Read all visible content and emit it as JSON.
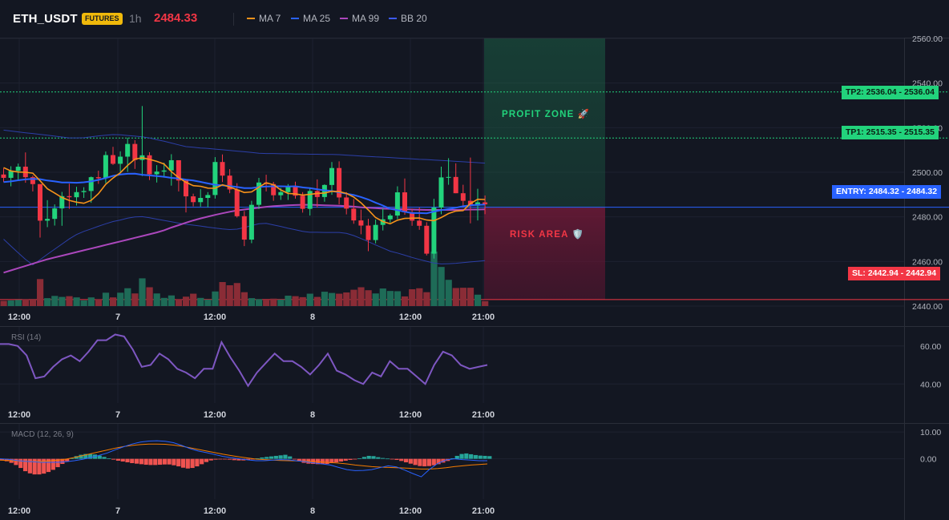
{
  "header": {
    "symbol": "ETH_USDT",
    "badge": "FUTURES",
    "timeframe": "1h",
    "price": "2484.33",
    "legend": [
      {
        "label": "MA 7",
        "color": "#f7931a"
      },
      {
        "label": "MA 25",
        "color": "#2962ff"
      },
      {
        "label": "MA 99",
        "color": "#ab47bc"
      },
      {
        "label": "BB 20",
        "color": "#3d5afe"
      }
    ]
  },
  "colors": {
    "background": "#131722",
    "up": "#22d37c",
    "down": "#f23645",
    "grid": "#1e2230",
    "ma7": "#f7931a",
    "ma25": "#2962ff",
    "ma99": "#ab47bc",
    "bb": "#2c3fa8",
    "rsi": "#7e57c2",
    "macd_line": "#2962ff",
    "signal_line": "#f57c00",
    "tp": "#22d37c",
    "entry": "#2962ff",
    "sl": "#f23645"
  },
  "zones": {
    "profit_label": "PROFIT ZONE 🚀",
    "risk_label": "RISK AREA 🛡️"
  },
  "levels": {
    "tp2": {
      "tag": "TP2: 2536.04",
      "price_label": "2536.04",
      "value": 2536.04
    },
    "tp1": {
      "tag": "TP1: 2515.35",
      "price_label": "2515.35",
      "value": 2515.35
    },
    "entry": {
      "tag": "ENTRY: 2484.32",
      "price_label": "2484.32",
      "value": 2484.32
    },
    "sl": {
      "tag": "SL: 2442.94",
      "price_label": "2442.94",
      "value": 2442.94
    }
  },
  "time_axis": [
    "12:00",
    "7",
    "12:00",
    "8",
    "12:00",
    "21:00"
  ],
  "chart_data": [
    {
      "type": "candlestick",
      "title": "ETH_USDT 1h",
      "ylim": [
        2440,
        2560
      ],
      "yticks": [
        "2560.00",
        "2540.00",
        "2520.00",
        "2500.00",
        "2480.00",
        "2460.00",
        "2440.00"
      ],
      "xticks": [
        "12:00",
        "7",
        "12:00",
        "8",
        "12:00",
        "21:00"
      ],
      "ohlc": [
        [
          2499.0,
          2501.9,
          2495.6,
          2497.5
        ],
        [
          2497.5,
          2502.7,
          2493.7,
          2500.6
        ],
        [
          2500.6,
          2503.9,
          2496.4,
          2502.5
        ],
        [
          2502.5,
          2508.9,
          2495.3,
          2497.8
        ],
        [
          2497.8,
          2498.5,
          2491.4,
          2494.7
        ],
        [
          2494.7,
          2494.7,
          2470.7,
          2478.3
        ],
        [
          2478.3,
          2487.5,
          2475.4,
          2479.1
        ],
        [
          2479.1,
          2485.6,
          2476.1,
          2483.8
        ],
        [
          2483.8,
          2491.2,
          2476.0,
          2489.3
        ],
        [
          2489.3,
          2494.9,
          2483.6,
          2488.8
        ],
        [
          2488.8,
          2493.5,
          2485.1,
          2491.1
        ],
        [
          2491.1,
          2493.3,
          2488.5,
          2491.6
        ],
        [
          2491.6,
          2498.1,
          2486.3,
          2497.8
        ],
        [
          2497.8,
          2500.7,
          2494.8,
          2497.3
        ],
        [
          2497.3,
          2509.3,
          2495.1,
          2507.7
        ],
        [
          2507.7,
          2511.4,
          2503.3,
          2503.8
        ],
        [
          2503.8,
          2509.4,
          2500.2,
          2507.0
        ],
        [
          2507.0,
          2515.5,
          2500.2,
          2512.7
        ],
        [
          2512.7,
          2514.4,
          2501.5,
          2505.5
        ],
        [
          2505.5,
          2529.7,
          2498.3,
          2507.6
        ],
        [
          2507.6,
          2509.0,
          2496.5,
          2499.1
        ],
        [
          2499.1,
          2503.2,
          2495.4,
          2500.3
        ],
        [
          2500.3,
          2504.3,
          2497.6,
          2500.8
        ],
        [
          2500.8,
          2508.1,
          2494.0,
          2505.4
        ],
        [
          2505.4,
          2505.4,
          2491.4,
          2496.3
        ],
        [
          2496.3,
          2496.8,
          2482.0,
          2489.2
        ],
        [
          2489.2,
          2490.4,
          2484.7,
          2486.6
        ],
        [
          2486.6,
          2492.4,
          2484.6,
          2488.5
        ],
        [
          2488.5,
          2491.1,
          2484.3,
          2489.8
        ],
        [
          2489.8,
          2506.8,
          2488.2,
          2504.6
        ],
        [
          2504.6,
          2508.0,
          2495.6,
          2498.5
        ],
        [
          2498.5,
          2501.4,
          2490.6,
          2492.3
        ],
        [
          2492.3,
          2495.1,
          2479.7,
          2480.3
        ],
        [
          2480.3,
          2482.6,
          2466.9,
          2469.8
        ],
        [
          2469.8,
          2487.2,
          2468.2,
          2485.4
        ],
        [
          2485.4,
          2497.5,
          2483.5,
          2495.4
        ],
        [
          2495.4,
          2498.9,
          2491.4,
          2494.7
        ],
        [
          2494.7,
          2495.7,
          2487.2,
          2489.7
        ],
        [
          2489.7,
          2493.0,
          2487.6,
          2491.1
        ],
        [
          2491.1,
          2494.7,
          2487.6,
          2493.9
        ],
        [
          2493.9,
          2495.8,
          2488.2,
          2489.5
        ],
        [
          2489.5,
          2491.1,
          2481.9,
          2483.6
        ],
        [
          2483.6,
          2493.2,
          2480.6,
          2491.6
        ],
        [
          2491.6,
          2496.8,
          2484.2,
          2488.9
        ],
        [
          2488.9,
          2494.6,
          2486.8,
          2494.3
        ],
        [
          2494.3,
          2504.6,
          2489.9,
          2501.9
        ],
        [
          2501.9,
          2504.9,
          2485.6,
          2488.7
        ],
        [
          2488.7,
          2491.1,
          2481.1,
          2483.7
        ],
        [
          2483.7,
          2488.0,
          2476.9,
          2478.4
        ],
        [
          2478.4,
          2483.3,
          2472.2,
          2476.1
        ],
        [
          2476.1,
          2479.1,
          2464.6,
          2469.6
        ],
        [
          2469.6,
          2478.8,
          2468.1,
          2476.4
        ],
        [
          2476.4,
          2483.9,
          2473.9,
          2478.9
        ],
        [
          2478.9,
          2481.4,
          2477.4,
          2480.6
        ],
        [
          2480.6,
          2493.7,
          2479.0,
          2491.0
        ],
        [
          2491.0,
          2497.2,
          2480.9,
          2482.1
        ],
        [
          2482.1,
          2483.7,
          2476.0,
          2478.3
        ],
        [
          2478.3,
          2484.2,
          2474.2,
          2476.0
        ],
        [
          2476.0,
          2477.6,
          2462.7,
          2463.5
        ],
        [
          2463.5,
          2488.1,
          2461.3,
          2484.2
        ],
        [
          2484.2,
          2502.5,
          2481.2,
          2497.7
        ],
        [
          2497.7,
          2506.3,
          2494.4,
          2497.9
        ],
        [
          2497.9,
          2504.0,
          2490.6,
          2490.6
        ],
        [
          2490.6,
          2494.4,
          2484.3,
          2487.2
        ],
        [
          2487.2,
          2506.6,
          2477.1,
          2485.0
        ],
        [
          2485.0,
          2492.6,
          2478.4,
          2486.5
        ],
        [
          2486.5,
          2489.6,
          2481.2,
          2485.6
        ]
      ],
      "volume": [
        2.1,
        2.3,
        2.5,
        2.7,
        2.9,
        10.9,
        3.2,
        4.1,
        3.7,
        4.0,
        3.5,
        2.3,
        3.5,
        2.8,
        5.4,
        3.5,
        5.4,
        7.2,
        5.1,
        11.2,
        7.6,
        5.1,
        3.3,
        4.3,
        2.7,
        3.8,
        5.0,
        3.3,
        2.6,
        5.9,
        9.7,
        8.4,
        9.3,
        5.6,
        3.2,
        2.8,
        2.6,
        3.0,
        2.6,
        4.2,
        4.0,
        3.6,
        5.0,
        3.7,
        5.8,
        5.3,
        5.0,
        5.5,
        6.6,
        7.6,
        6.4,
        5.1,
        7.1,
        6.1,
        6.0,
        3.9,
        6.8,
        7.2,
        5.6,
        22.0,
        15.8,
        10.6,
        7.3,
        7.4,
        7.4,
        4.6,
        2.0
      ],
      "ma7": [
        2502.1,
        2500.6,
        2500.1,
        2500.0,
        2499.6,
        2496.2,
        2492.6,
        2490.7,
        2488.7,
        2487.4,
        2486.6,
        2486.1,
        2487.4,
        2490.4,
        2494.6,
        2497.4,
        2499.8,
        2503.1,
        2505.9,
        2506.5,
        2505.8,
        2504.9,
        2503.7,
        2500.3,
        2497.6,
        2495.5,
        2494.0,
        2493.7,
        2492.9,
        2492.8,
        2494.4,
        2493.4,
        2492.2,
        2490.9,
        2491.2,
        2493.3,
        2495.3,
        2494.4,
        2492.1,
        2490.5,
        2490.3,
        2489.8,
        2490.1,
        2490.5,
        2490.7,
        2491.5,
        2491.3,
        2490.5,
        2488.9,
        2486.3,
        2483.1,
        2479.7,
        2477.9,
        2476.9,
        2478.5,
        2479.3,
        2479.4,
        2479.5,
        2478.6,
        2478.3,
        2479.7,
        2481.5,
        2482.6,
        2482.8,
        2486.0,
        2487.9,
        2487.8
      ],
      "ma25": [
        2495.6,
        2495.9,
        2496.4,
        2496.8,
        2497.0,
        2496.9,
        2496.3,
        2495.9,
        2495.4,
        2495.4,
        2495.3,
        2495.5,
        2495.9,
        2496.6,
        2497.4,
        2498.4,
        2499.0,
        2499.3,
        2499.4,
        2498.9,
        2498.6,
        2498.3,
        2498.0,
        2497.5,
        2497.2,
        2496.7,
        2496.3,
        2495.7,
        2495.0,
        2494.4,
        2494.1,
        2493.8,
        2493.4,
        2492.9,
        2492.9,
        2493.4,
        2493.6,
        2493.7,
        2493.7,
        2493.6,
        2493.7,
        2493.2,
        2492.9,
        2492.4,
        2491.9,
        2491.6,
        2491.0,
        2490.4,
        2489.8,
        2488.9,
        2487.8,
        2486.4,
        2485.1,
        2483.6,
        2483.0,
        2482.3,
        2481.7,
        2481.7,
        2481.6,
        2482.4,
        2483.0,
        2483.5,
        2484.1,
        2484.8,
        2485.2,
        2485.4,
        2485.5
      ],
      "ma99": [
        2455.0,
        2456.0,
        2457.0,
        2458.0,
        2459.0,
        2460.0,
        2461.0,
        2461.8,
        2462.6,
        2463.4,
        2464.2,
        2465.0,
        2465.8,
        2466.6,
        2467.4,
        2468.2,
        2469.0,
        2469.8,
        2470.6,
        2471.4,
        2472.2,
        2473.0,
        2474.0,
        2475.2,
        2476.3,
        2477.4,
        2478.4,
        2479.3,
        2480.1,
        2480.9,
        2481.6,
        2482.3,
        2482.9,
        2483.3,
        2483.7,
        2484.1,
        2484.5,
        2484.8,
        2485.0,
        2485.2,
        2485.3,
        2485.4,
        2485.4,
        2485.3,
        2485.2,
        2485.1,
        2485.0,
        2484.8,
        2484.6,
        2484.3,
        2484.1,
        2483.9,
        2483.7,
        2483.6,
        2483.5,
        2483.4,
        2483.3,
        2483.2,
        2483.1,
        2483.1,
        2483.1,
        2483.1,
        2483.1,
        2483.2,
        2483.3,
        2483.3,
        2483.4
      ],
      "bb_upper": [
        2518.9,
        2518.5,
        2518.1,
        2517.7,
        2517.4,
        2517.0,
        2516.6,
        2516.2,
        2515.8,
        2515.4,
        2515.4,
        2515.5,
        2515.9,
        2516.3,
        2516.6,
        2516.9,
        2516.8,
        2516.5,
        2516.2,
        2515.9,
        2515.4,
        2514.6,
        2513.9,
        2513.1,
        2512.3,
        2511.5,
        2511.2,
        2510.9,
        2510.7,
        2510.4,
        2510.1,
        2509.8,
        2509.5,
        2509.2,
        2508.9,
        2508.5,
        2508.4,
        2508.4,
        2508.3,
        2508.3,
        2508.2,
        2508.2,
        2508.1,
        2508.1,
        2508.0,
        2508.0,
        2507.9,
        2507.7,
        2507.5,
        2507.3,
        2507.1,
        2506.9,
        2506.8,
        2506.6,
        2506.4,
        2506.2,
        2506.0,
        2505.8,
        2505.7,
        2505.5,
        2505.3,
        2505.1,
        2504.9,
        2504.7,
        2504.5,
        2504.3,
        2504.1
      ],
      "bb_lower": [
        2470.0,
        2466.9,
        2463.9,
        2460.9,
        2458.5,
        2460.8,
        2463.2,
        2465.5,
        2467.8,
        2470.1,
        2472.1,
        2473.5,
        2474.6,
        2475.8,
        2476.9,
        2477.9,
        2478.6,
        2479.4,
        2480.0,
        2480.1,
        2479.6,
        2479.0,
        2478.4,
        2477.8,
        2477.2,
        2476.7,
        2476.3,
        2475.9,
        2475.4,
        2475.0,
        2474.6,
        2474.3,
        2474.5,
        2475.2,
        2476.1,
        2476.9,
        2477.1,
        2476.4,
        2475.7,
        2474.9,
        2474.2,
        2473.5,
        2473.1,
        2473.1,
        2473.0,
        2473.0,
        2473.0,
        2472.6,
        2471.6,
        2470.3,
        2468.9,
        2467.4,
        2466.0,
        2464.6,
        2463.8,
        2462.8,
        2461.8,
        2460.9,
        2460.1,
        2459.3,
        2458.9,
        2459.0,
        2459.2,
        2459.5,
        2459.8,
        2460.1,
        2460.4
      ]
    },
    {
      "type": "line",
      "title": "RSI (14)",
      "ylim": [
        30,
        70
      ],
      "yticks": [
        "60.00",
        "40.00"
      ],
      "xticks": [
        "12:00",
        "7",
        "12:00",
        "8",
        "12:00",
        "21:00"
      ],
      "values": [
        61,
        61,
        60,
        55,
        43,
        44,
        49,
        53,
        55,
        52,
        57,
        63,
        63,
        66,
        65,
        58,
        49,
        50,
        56,
        53,
        48,
        46,
        43,
        48,
        48,
        62,
        54,
        47,
        39,
        46,
        51,
        56,
        52,
        52,
        49,
        45,
        50,
        56,
        47,
        45,
        42,
        40,
        46,
        44,
        52,
        48,
        48,
        44,
        40,
        50,
        57,
        55,
        50,
        48,
        49,
        50
      ]
    },
    {
      "type": "bar+line",
      "title": "MACD (12, 26, 9)",
      "ylim": [
        -15,
        13
      ],
      "yticks": [
        "10.00",
        "0.00"
      ],
      "xticks": [
        "12:00",
        "7",
        "12:00",
        "8",
        "12:00",
        "21:00"
      ],
      "histogram": [
        -0.6,
        -0.9,
        -1.5,
        -2.3,
        -3.4,
        -4.6,
        -5.4,
        -5.8,
        -5.8,
        -5.5,
        -4.9,
        -4.1,
        -3.1,
        -1.9,
        -0.9,
        0.2,
        1.0,
        1.5,
        1.8,
        1.8,
        1.6,
        1.2,
        0.7,
        0.2,
        -0.3,
        -0.7,
        -1.0,
        -1.3,
        -1.6,
        -1.8,
        -2.0,
        -2.2,
        -2.3,
        -2.3,
        -2.2,
        -2.1,
        -2.1,
        -2.4,
        -2.8,
        -3.3,
        -3.6,
        -3.4,
        -2.8,
        -2.0,
        -1.2,
        -0.6,
        -0.3,
        -0.1,
        -0.2,
        -0.3,
        -0.5,
        -0.6,
        -0.6,
        -0.4,
        -0.1,
        0.2,
        0.5,
        0.7,
        0.9,
        1.1,
        1.3,
        1.5,
        0.9,
        -0.2,
        -0.8,
        -1.5,
        -1.8,
        -1.9,
        -2.0,
        -2.0,
        -1.9,
        -1.6,
        -1.3,
        -1.0,
        -0.7,
        -0.4,
        -0.1,
        0.2,
        0.7,
        1.1,
        1.0,
        0.6,
        0.3,
        0.1,
        -0.1,
        -0.4,
        -0.8,
        -1.3,
        -1.8,
        -2.3,
        -2.7,
        -2.8,
        -2.7,
        -2.4,
        -2.0,
        -1.4,
        -0.8,
        0.2,
        1.1,
        1.8,
        2.0,
        1.7,
        1.4,
        1.2,
        1.1,
        1.0
      ],
      "macd": [
        0.0,
        -0.2,
        -0.6,
        -0.9,
        -1.1,
        -1.3,
        -1.3,
        -1.3,
        -1.1,
        -0.7,
        -0.2,
        0.5,
        1.3,
        2.2,
        3.4,
        4.5,
        5.5,
        6.2,
        6.6,
        6.7,
        6.5,
        6.0,
        5.0,
        3.8,
        2.9,
        2.3,
        1.6,
        0.9,
        0.4,
        0.0,
        -0.4,
        -0.7,
        -0.7,
        -0.5,
        -0.3,
        -0.4,
        -0.8,
        -1.1,
        -1.5,
        -1.9,
        -2.3,
        -3.2,
        -4.0,
        -4.4,
        -4.3,
        -4.0,
        -3.3,
        -2.6,
        -3.0,
        -4.2,
        -5.5,
        -6.7,
        -3.9,
        -1.7,
        -0.4,
        0.0,
        -0.3,
        -0.5,
        -0.7,
        -0.7
      ],
      "signal": [
        -0.5,
        -0.6,
        -0.8,
        -0.9,
        -1.0,
        -1.0,
        -0.8,
        -0.5,
        -0.1,
        0.5,
        1.2,
        1.9,
        2.6,
        3.3,
        4.0,
        4.6,
        5.0,
        5.3,
        5.5,
        5.5,
        5.4,
        5.1,
        4.7,
        4.1,
        3.5,
        2.9,
        2.3,
        1.7,
        1.2,
        0.7,
        0.3,
        -0.1,
        -0.3,
        -0.5,
        -0.6,
        -0.7,
        -0.8,
        -0.9,
        -1.0,
        -1.2,
        -1.4,
        -1.6,
        -1.9,
        -2.3,
        -2.6,
        -2.9,
        -3.1,
        -3.2,
        -3.3,
        -3.4,
        -3.6,
        -3.8,
        -3.8,
        -3.6,
        -3.3,
        -2.9,
        -2.6,
        -2.3,
        -2.1,
        -1.9
      ]
    }
  ]
}
